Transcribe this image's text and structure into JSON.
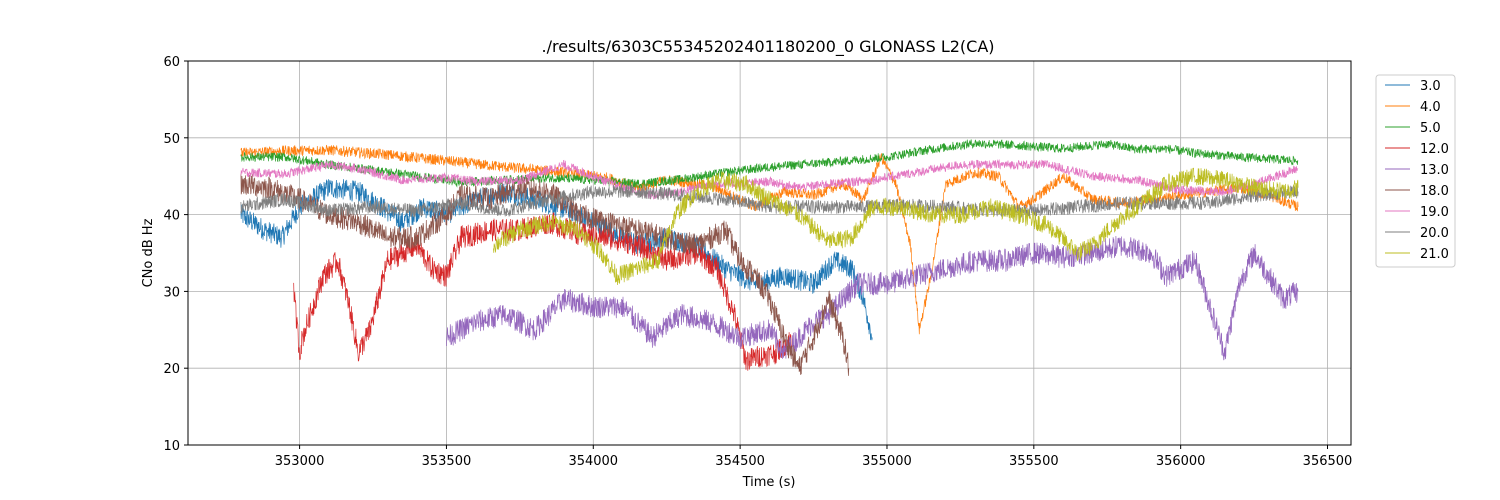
{
  "chart_data": {
    "type": "line",
    "title": "./results/6303C55345202401180200_0 GLONASS L2(CA)",
    "xlabel": "Time (s)",
    "ylabel": "CNo dB Hz",
    "xlim": [
      352620,
      356580
    ],
    "ylim": [
      10,
      60
    ],
    "xticks": [
      353000,
      353500,
      354000,
      354500,
      355000,
      355500,
      356000,
      356500
    ],
    "yticks": [
      10,
      20,
      30,
      40,
      50,
      60
    ],
    "grid": true,
    "legend_position": "outside-right-top",
    "series": [
      {
        "name": "3.0",
        "color": "#1f77b4",
        "noise": 1.4,
        "points": [
          [
            352800,
            40
          ],
          [
            352880,
            38
          ],
          [
            352940,
            37
          ],
          [
            353000,
            41
          ],
          [
            353100,
            43.5
          ],
          [
            353200,
            43
          ],
          [
            353280,
            41
          ],
          [
            353350,
            39
          ],
          [
            353420,
            41
          ],
          [
            353500,
            40
          ],
          [
            353600,
            42
          ],
          [
            353700,
            43
          ],
          [
            353800,
            42
          ],
          [
            353880,
            41
          ],
          [
            353950,
            40
          ],
          [
            354050,
            38
          ],
          [
            354150,
            36
          ],
          [
            354250,
            37
          ],
          [
            354350,
            36
          ],
          [
            354450,
            33
          ],
          [
            354550,
            31
          ],
          [
            354650,
            32
          ],
          [
            354750,
            31
          ],
          [
            354820,
            34
          ],
          [
            354880,
            33
          ],
          [
            354920,
            29
          ],
          [
            354950,
            24
          ]
        ]
      },
      {
        "name": "4.0",
        "color": "#ff7f0e",
        "noise": 0.7,
        "points": [
          [
            352800,
            48
          ],
          [
            352950,
            48.3
          ],
          [
            353100,
            48.4
          ],
          [
            353300,
            47.8
          ],
          [
            353500,
            47
          ],
          [
            353700,
            46.2
          ],
          [
            353900,
            45.5
          ],
          [
            354050,
            44.8
          ],
          [
            354150,
            43.5
          ],
          [
            354250,
            44.5
          ],
          [
            354400,
            43.8
          ],
          [
            354550,
            41
          ],
          [
            354650,
            43
          ],
          [
            354750,
            42.5
          ],
          [
            354850,
            44
          ],
          [
            354920,
            42
          ],
          [
            354980,
            47.5
          ],
          [
            355030,
            44
          ],
          [
            355080,
            36
          ],
          [
            355110,
            25
          ],
          [
            355150,
            32
          ],
          [
            355200,
            44
          ],
          [
            355300,
            45.5
          ],
          [
            355380,
            45
          ],
          [
            355450,
            41
          ],
          [
            355500,
            42
          ],
          [
            355600,
            45
          ],
          [
            355700,
            42
          ],
          [
            355800,
            41.5
          ],
          [
            355900,
            42
          ],
          [
            356000,
            42.5
          ],
          [
            356100,
            43
          ],
          [
            356200,
            43.5
          ],
          [
            356300,
            42.5
          ],
          [
            356400,
            41
          ]
        ]
      },
      {
        "name": "5.0",
        "color": "#2ca02c",
        "noise": 0.6,
        "points": [
          [
            352800,
            47.5
          ],
          [
            352950,
            47.5
          ],
          [
            353100,
            46.5
          ],
          [
            353250,
            45.8
          ],
          [
            353400,
            45
          ],
          [
            353550,
            44.2
          ],
          [
            353700,
            44.5
          ],
          [
            353850,
            44.8
          ],
          [
            354000,
            44.5
          ],
          [
            354150,
            44
          ],
          [
            354300,
            44.6
          ],
          [
            354450,
            45.5
          ],
          [
            354600,
            46.2
          ],
          [
            354800,
            46.8
          ],
          [
            355000,
            47.5
          ],
          [
            355150,
            48.5
          ],
          [
            355300,
            49.3
          ],
          [
            355450,
            49
          ],
          [
            355600,
            48.6
          ],
          [
            355750,
            49.2
          ],
          [
            355850,
            48.5
          ],
          [
            355950,
            48.6
          ],
          [
            356050,
            48
          ],
          [
            356200,
            47.5
          ],
          [
            356400,
            47
          ]
        ]
      },
      {
        "name": "12.0",
        "color": "#d62728",
        "noise": 1.5,
        "points": [
          [
            352980,
            30
          ],
          [
            352990,
            26
          ],
          [
            353000,
            22
          ],
          [
            353010,
            24
          ],
          [
            353080,
            32
          ],
          [
            353130,
            34
          ],
          [
            353170,
            28
          ],
          [
            353200,
            22
          ],
          [
            353240,
            25
          ],
          [
            353300,
            34
          ],
          [
            353400,
            36
          ],
          [
            353450,
            33
          ],
          [
            353500,
            32
          ],
          [
            353550,
            37
          ],
          [
            353650,
            38
          ],
          [
            353750,
            38
          ],
          [
            353850,
            39
          ],
          [
            353950,
            37.5
          ],
          [
            354050,
            37
          ],
          [
            354150,
            36
          ],
          [
            354250,
            34
          ],
          [
            354350,
            35
          ],
          [
            354420,
            33
          ],
          [
            354480,
            27
          ],
          [
            354520,
            21
          ],
          [
            354560,
            21.5
          ],
          [
            354620,
            22
          ],
          [
            354680,
            24
          ]
        ]
      },
      {
        "name": "13.0",
        "color": "#9467bd",
        "noise": 1.5,
        "points": [
          [
            353500,
            24
          ],
          [
            353600,
            26
          ],
          [
            353700,
            27
          ],
          [
            353800,
            25
          ],
          [
            353900,
            29
          ],
          [
            354000,
            28
          ],
          [
            354100,
            28
          ],
          [
            354200,
            24
          ],
          [
            354300,
            27
          ],
          [
            354400,
            26
          ],
          [
            354500,
            24
          ],
          [
            354600,
            25
          ],
          [
            354650,
            22
          ],
          [
            354700,
            24
          ],
          [
            354750,
            26
          ],
          [
            354800,
            27
          ],
          [
            354900,
            31
          ],
          [
            355000,
            31
          ],
          [
            355100,
            32
          ],
          [
            355200,
            33
          ],
          [
            355300,
            34
          ],
          [
            355400,
            34
          ],
          [
            355500,
            35
          ],
          [
            355600,
            34.5
          ],
          [
            355700,
            35
          ],
          [
            355800,
            36
          ],
          [
            355900,
            35
          ],
          [
            355950,
            32
          ],
          [
            356000,
            33
          ],
          [
            356050,
            34
          ],
          [
            356100,
            28
          ],
          [
            356150,
            22
          ],
          [
            356200,
            31
          ],
          [
            356250,
            35
          ],
          [
            356300,
            32
          ],
          [
            356350,
            29
          ],
          [
            356400,
            30
          ]
        ]
      },
      {
        "name": "18.0",
        "color": "#8c564b",
        "noise": 1.5,
        "points": [
          [
            352800,
            44
          ],
          [
            352900,
            43.5
          ],
          [
            353000,
            42
          ],
          [
            353100,
            40
          ],
          [
            353200,
            39
          ],
          [
            353300,
            37
          ],
          [
            353400,
            37
          ],
          [
            353500,
            40
          ],
          [
            353550,
            42.5
          ],
          [
            353650,
            42
          ],
          [
            353750,
            43.5
          ],
          [
            353850,
            43
          ],
          [
            353950,
            40
          ],
          [
            354050,
            39
          ],
          [
            354150,
            38
          ],
          [
            354250,
            37
          ],
          [
            354350,
            36
          ],
          [
            354450,
            38
          ],
          [
            354500,
            34
          ],
          [
            354550,
            32
          ],
          [
            354600,
            29
          ],
          [
            354650,
            24
          ],
          [
            354700,
            20
          ],
          [
            354750,
            24
          ],
          [
            354800,
            29
          ],
          [
            354850,
            24
          ],
          [
            354870,
            20
          ]
        ]
      },
      {
        "name": "19.0",
        "color": "#e377c2",
        "noise": 0.6,
        "points": [
          [
            352800,
            45.5
          ],
          [
            352950,
            45.3
          ],
          [
            353100,
            46.5
          ],
          [
            353200,
            46
          ],
          [
            353350,
            44.5
          ],
          [
            353500,
            44.8
          ],
          [
            353600,
            44.3
          ],
          [
            353750,
            44.5
          ],
          [
            353900,
            46.5
          ],
          [
            354000,
            45
          ],
          [
            354100,
            43.5
          ],
          [
            354200,
            42.5
          ],
          [
            354300,
            43
          ],
          [
            354400,
            44
          ],
          [
            354500,
            44
          ],
          [
            354600,
            44.3
          ],
          [
            354700,
            43.5
          ],
          [
            354800,
            44
          ],
          [
            354950,
            44.5
          ],
          [
            355100,
            45.5
          ],
          [
            355250,
            46.5
          ],
          [
            355400,
            46.5
          ],
          [
            355550,
            46.5
          ],
          [
            355700,
            45
          ],
          [
            355850,
            44.5
          ],
          [
            356000,
            43.2
          ],
          [
            356150,
            43
          ],
          [
            356250,
            44
          ],
          [
            356400,
            46
          ]
        ]
      },
      {
        "name": "20.0",
        "color": "#7f7f7f",
        "noise": 0.9,
        "points": [
          [
            352800,
            41
          ],
          [
            352950,
            42
          ],
          [
            353100,
            40.5
          ],
          [
            353250,
            41
          ],
          [
            353400,
            40.5
          ],
          [
            353550,
            41.5
          ],
          [
            353700,
            40.5
          ],
          [
            353850,
            42
          ],
          [
            354000,
            43
          ],
          [
            354150,
            43
          ],
          [
            354300,
            42.5
          ],
          [
            354450,
            42
          ],
          [
            354600,
            41
          ],
          [
            354750,
            41
          ],
          [
            354900,
            41
          ],
          [
            355050,
            41.2
          ],
          [
            355200,
            41
          ],
          [
            355350,
            40.5
          ],
          [
            355500,
            40.5
          ],
          [
            355650,
            41
          ],
          [
            355800,
            41.5
          ],
          [
            355950,
            41.5
          ],
          [
            356100,
            41.5
          ],
          [
            356250,
            42.5
          ],
          [
            356400,
            43
          ]
        ]
      },
      {
        "name": "21.0",
        "color": "#bcbd22",
        "noise": 1.2,
        "points": [
          [
            353660,
            36
          ],
          [
            353750,
            38
          ],
          [
            353850,
            39
          ],
          [
            353950,
            38
          ],
          [
            354030,
            35
          ],
          [
            354080,
            32
          ],
          [
            354150,
            33
          ],
          [
            354220,
            34
          ],
          [
            354280,
            40
          ],
          [
            354350,
            43
          ],
          [
            354430,
            44.5
          ],
          [
            354520,
            44
          ],
          [
            354600,
            42
          ],
          [
            354700,
            40
          ],
          [
            354800,
            36.5
          ],
          [
            354880,
            37
          ],
          [
            354950,
            41
          ],
          [
            355050,
            41
          ],
          [
            355150,
            40
          ],
          [
            355250,
            40
          ],
          [
            355350,
            41
          ],
          [
            355450,
            40
          ],
          [
            355550,
            38.5
          ],
          [
            355650,
            35
          ],
          [
            355700,
            36
          ],
          [
            355780,
            39
          ],
          [
            355850,
            41
          ],
          [
            355950,
            44
          ],
          [
            356050,
            45
          ],
          [
            356150,
            44.5
          ],
          [
            356250,
            43.5
          ],
          [
            356350,
            43
          ],
          [
            356400,
            43.5
          ]
        ]
      }
    ]
  }
}
